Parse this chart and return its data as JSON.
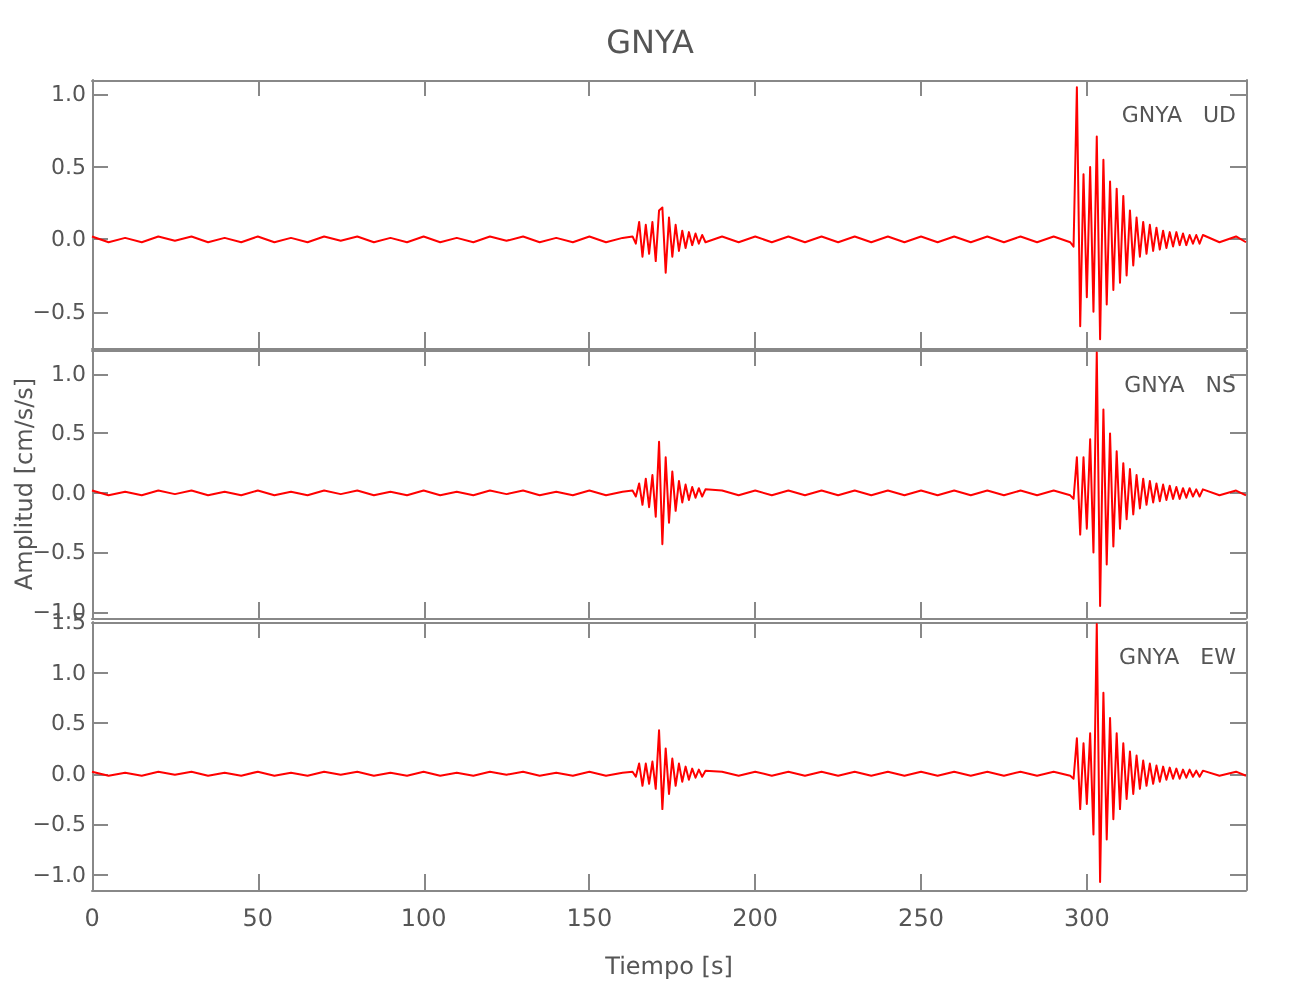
{
  "chart_data": [
    {
      "type": "line",
      "title": "GNYA",
      "annotations": [
        "GNYA   UD"
      ],
      "tick_labels": "y",
      "grid": false,
      "x": [
        0,
        5,
        10,
        15,
        20,
        25,
        30,
        35,
        40,
        45,
        50,
        55,
        60,
        65,
        70,
        75,
        80,
        85,
        90,
        95,
        100,
        105,
        110,
        115,
        120,
        125,
        130,
        135,
        140,
        145,
        150,
        155,
        160,
        163,
        164,
        165,
        166,
        167,
        168,
        169,
        170,
        171,
        172,
        173,
        174,
        175,
        176,
        177,
        178,
        179,
        180,
        181,
        182,
        183,
        184,
        185,
        190,
        195,
        200,
        205,
        210,
        215,
        220,
        225,
        230,
        235,
        240,
        245,
        250,
        255,
        260,
        265,
        270,
        275,
        280,
        285,
        290,
        295,
        296,
        297,
        298,
        299,
        300,
        301,
        302,
        303,
        304,
        305,
        306,
        307,
        308,
        309,
        310,
        311,
        312,
        313,
        314,
        315,
        316,
        317,
        318,
        319,
        320,
        321,
        322,
        323,
        324,
        325,
        326,
        327,
        328,
        329,
        330,
        331,
        332,
        333,
        334,
        335,
        340,
        345,
        348
      ],
      "xlim": [
        0,
        348
      ],
      "xticks": [
        0,
        50,
        100,
        150,
        200,
        250,
        300
      ],
      "ylim": [
        -0.75,
        1.1
      ],
      "yticks": [
        {
          "value": -0.5,
          "label": "−0.5"
        },
        {
          "value": 0,
          "label": "0.0"
        },
        {
          "value": 0.5,
          "label": "0.5"
        },
        {
          "value": 1,
          "label": "1.0"
        }
      ],
      "series": [
        {
          "color": "#ff0000",
          "values": [
            0.02,
            -0.02,
            0.01,
            -0.02,
            0.02,
            -0.01,
            0.02,
            -0.02,
            0.01,
            -0.02,
            0.02,
            -0.02,
            0.01,
            -0.02,
            0.02,
            -0.01,
            0.02,
            -0.02,
            0.01,
            -0.02,
            0.02,
            -0.02,
            0.01,
            -0.02,
            0.02,
            -0.01,
            0.02,
            -0.02,
            0.01,
            -0.02,
            0.02,
            -0.02,
            0.01,
            0.02,
            -0.03,
            0.12,
            -0.12,
            0.1,
            -0.1,
            0.12,
            -0.15,
            0.2,
            0.22,
            -0.23,
            0.15,
            -0.12,
            0.1,
            -0.08,
            0.06,
            -0.06,
            0.05,
            -0.04,
            0.04,
            -0.03,
            0.03,
            -0.02,
            0.02,
            -0.02,
            0.02,
            -0.02,
            0.02,
            -0.02,
            0.02,
            -0.02,
            0.02,
            -0.02,
            0.02,
            -0.02,
            0.02,
            -0.02,
            0.02,
            -0.02,
            0.02,
            -0.02,
            0.02,
            -0.02,
            0.02,
            -0.02,
            -0.05,
            1.05,
            -0.6,
            0.45,
            -0.4,
            0.5,
            -0.5,
            0.71,
            -0.69,
            0.55,
            -0.45,
            0.4,
            -0.35,
            0.35,
            -0.3,
            0.3,
            -0.25,
            0.2,
            -0.18,
            0.15,
            -0.12,
            0.12,
            -0.1,
            0.1,
            -0.08,
            0.08,
            -0.07,
            0.06,
            -0.06,
            0.05,
            -0.05,
            0.05,
            -0.04,
            0.04,
            -0.04,
            0.03,
            -0.03,
            0.03,
            -0.03,
            0.03,
            -0.02,
            0.02,
            -0.02
          ]
        }
      ]
    },
    {
      "type": "line",
      "ylabel": "Amplitud [cm/s/s]",
      "annotations": [
        "GNYA   NS"
      ],
      "tick_labels": "y",
      "grid": false,
      "x": [
        0,
        5,
        10,
        15,
        20,
        25,
        30,
        35,
        40,
        45,
        50,
        55,
        60,
        65,
        70,
        75,
        80,
        85,
        90,
        95,
        100,
        105,
        110,
        115,
        120,
        125,
        130,
        135,
        140,
        145,
        150,
        155,
        160,
        163,
        164,
        165,
        166,
        167,
        168,
        169,
        170,
        171,
        172,
        173,
        174,
        175,
        176,
        177,
        178,
        179,
        180,
        181,
        182,
        183,
        184,
        185,
        190,
        195,
        200,
        205,
        210,
        215,
        220,
        225,
        230,
        235,
        240,
        245,
        250,
        255,
        260,
        265,
        270,
        275,
        280,
        285,
        290,
        295,
        296,
        297,
        298,
        299,
        300,
        301,
        302,
        303,
        304,
        305,
        306,
        307,
        308,
        309,
        310,
        311,
        312,
        313,
        314,
        315,
        316,
        317,
        318,
        319,
        320,
        321,
        322,
        323,
        324,
        325,
        326,
        327,
        328,
        329,
        330,
        331,
        332,
        333,
        334,
        335,
        340,
        345,
        348
      ],
      "xlim": [
        0,
        348
      ],
      "xticks": [
        0,
        50,
        100,
        150,
        200,
        250,
        300
      ],
      "ylim": [
        -1.05,
        1.2
      ],
      "yticks": [
        {
          "value": -1,
          "label": "−1.0"
        },
        {
          "value": -0.5,
          "label": "−0.5"
        },
        {
          "value": 0,
          "label": "0.0"
        },
        {
          "value": 0.5,
          "label": "0.5"
        },
        {
          "value": 1,
          "label": "1.0"
        }
      ],
      "series": [
        {
          "color": "#ff0000",
          "values": [
            0.02,
            -0.02,
            0.01,
            -0.02,
            0.02,
            -0.01,
            0.02,
            -0.02,
            0.01,
            -0.02,
            0.02,
            -0.02,
            0.01,
            -0.02,
            0.02,
            -0.01,
            0.02,
            -0.02,
            0.01,
            -0.02,
            0.02,
            -0.02,
            0.01,
            -0.02,
            0.02,
            -0.01,
            0.02,
            -0.02,
            0.01,
            -0.02,
            0.02,
            -0.02,
            0.01,
            0.02,
            -0.03,
            0.08,
            -0.1,
            0.12,
            -0.12,
            0.15,
            -0.2,
            0.43,
            -0.43,
            0.3,
            -0.25,
            0.18,
            -0.15,
            0.1,
            -0.08,
            0.07,
            -0.06,
            0.05,
            -0.04,
            0.04,
            -0.03,
            0.03,
            0.02,
            -0.02,
            0.02,
            -0.02,
            0.02,
            -0.02,
            0.02,
            -0.02,
            0.02,
            -0.02,
            0.02,
            -0.02,
            0.02,
            -0.02,
            0.02,
            -0.02,
            0.02,
            -0.02,
            0.02,
            -0.02,
            0.02,
            -0.02,
            -0.05,
            0.3,
            -0.35,
            0.3,
            -0.3,
            0.45,
            -0.5,
            1.18,
            -0.95,
            0.7,
            -0.6,
            0.5,
            -0.45,
            0.35,
            -0.3,
            0.25,
            -0.22,
            0.2,
            -0.18,
            0.15,
            -0.13,
            0.12,
            -0.1,
            0.1,
            -0.08,
            0.08,
            -0.07,
            0.07,
            -0.06,
            0.06,
            -0.05,
            0.05,
            -0.05,
            0.04,
            -0.04,
            0.04,
            -0.03,
            0.03,
            -0.03,
            0.03,
            -0.02,
            0.02,
            -0.02
          ]
        }
      ]
    },
    {
      "type": "line",
      "xlabel": "Tiempo [s]",
      "annotations": [
        "GNYA   EW"
      ],
      "grid": false,
      "x": [
        0,
        5,
        10,
        15,
        20,
        25,
        30,
        35,
        40,
        45,
        50,
        55,
        60,
        65,
        70,
        75,
        80,
        85,
        90,
        95,
        100,
        105,
        110,
        115,
        120,
        125,
        130,
        135,
        140,
        145,
        150,
        155,
        160,
        163,
        164,
        165,
        166,
        167,
        168,
        169,
        170,
        171,
        172,
        173,
        174,
        175,
        176,
        177,
        178,
        179,
        180,
        181,
        182,
        183,
        184,
        185,
        190,
        195,
        200,
        205,
        210,
        215,
        220,
        225,
        230,
        235,
        240,
        245,
        250,
        255,
        260,
        265,
        270,
        275,
        280,
        285,
        290,
        295,
        296,
        297,
        298,
        299,
        300,
        301,
        302,
        303,
        304,
        305,
        306,
        307,
        308,
        309,
        310,
        311,
        312,
        313,
        314,
        315,
        316,
        317,
        318,
        319,
        320,
        321,
        322,
        323,
        324,
        325,
        326,
        327,
        328,
        329,
        330,
        331,
        332,
        333,
        334,
        335,
        340,
        345,
        348
      ],
      "xlim": [
        0,
        348
      ],
      "xticks": [
        0,
        50,
        100,
        150,
        200,
        250,
        300
      ],
      "ylim": [
        -1.15,
        1.5
      ],
      "yticks": [
        {
          "value": -1,
          "label": "−1.0"
        },
        {
          "value": -0.5,
          "label": "−0.5"
        },
        {
          "value": 0,
          "label": "0.0"
        },
        {
          "value": 0.5,
          "label": "0.5"
        },
        {
          "value": 1,
          "label": "1.0"
        },
        {
          "value": 1.5,
          "label": "1.5"
        }
      ],
      "series": [
        {
          "color": "#ff0000",
          "values": [
            0.02,
            -0.02,
            0.01,
            -0.02,
            0.02,
            -0.01,
            0.02,
            -0.02,
            0.01,
            -0.02,
            0.02,
            -0.02,
            0.01,
            -0.02,
            0.02,
            -0.01,
            0.02,
            -0.02,
            0.01,
            -0.02,
            0.02,
            -0.02,
            0.01,
            -0.02,
            0.02,
            -0.01,
            0.02,
            -0.02,
            0.01,
            -0.02,
            0.02,
            -0.02,
            0.01,
            0.02,
            -0.03,
            0.1,
            -0.12,
            0.1,
            -0.1,
            0.12,
            -0.15,
            0.43,
            -0.35,
            0.25,
            -0.2,
            0.15,
            -0.12,
            0.1,
            -0.08,
            0.07,
            -0.06,
            0.05,
            -0.04,
            0.04,
            -0.03,
            0.03,
            0.02,
            -0.02,
            0.02,
            -0.02,
            0.02,
            -0.02,
            0.02,
            -0.02,
            0.02,
            -0.02,
            0.02,
            -0.02,
            0.02,
            -0.02,
            0.02,
            -0.02,
            0.02,
            -0.02,
            0.02,
            -0.02,
            0.02,
            -0.02,
            -0.05,
            0.35,
            -0.35,
            0.3,
            -0.3,
            0.4,
            -0.6,
            1.48,
            -1.07,
            0.8,
            -0.65,
            0.55,
            -0.45,
            0.4,
            -0.35,
            0.3,
            -0.25,
            0.22,
            -0.2,
            0.18,
            -0.15,
            0.13,
            -0.12,
            0.1,
            -0.1,
            0.08,
            -0.08,
            0.07,
            -0.06,
            0.06,
            -0.05,
            0.05,
            -0.05,
            0.04,
            -0.04,
            0.04,
            -0.03,
            0.03,
            -0.03,
            0.03,
            -0.02,
            0.02,
            -0.02
          ]
        }
      ]
    }
  ]
}
